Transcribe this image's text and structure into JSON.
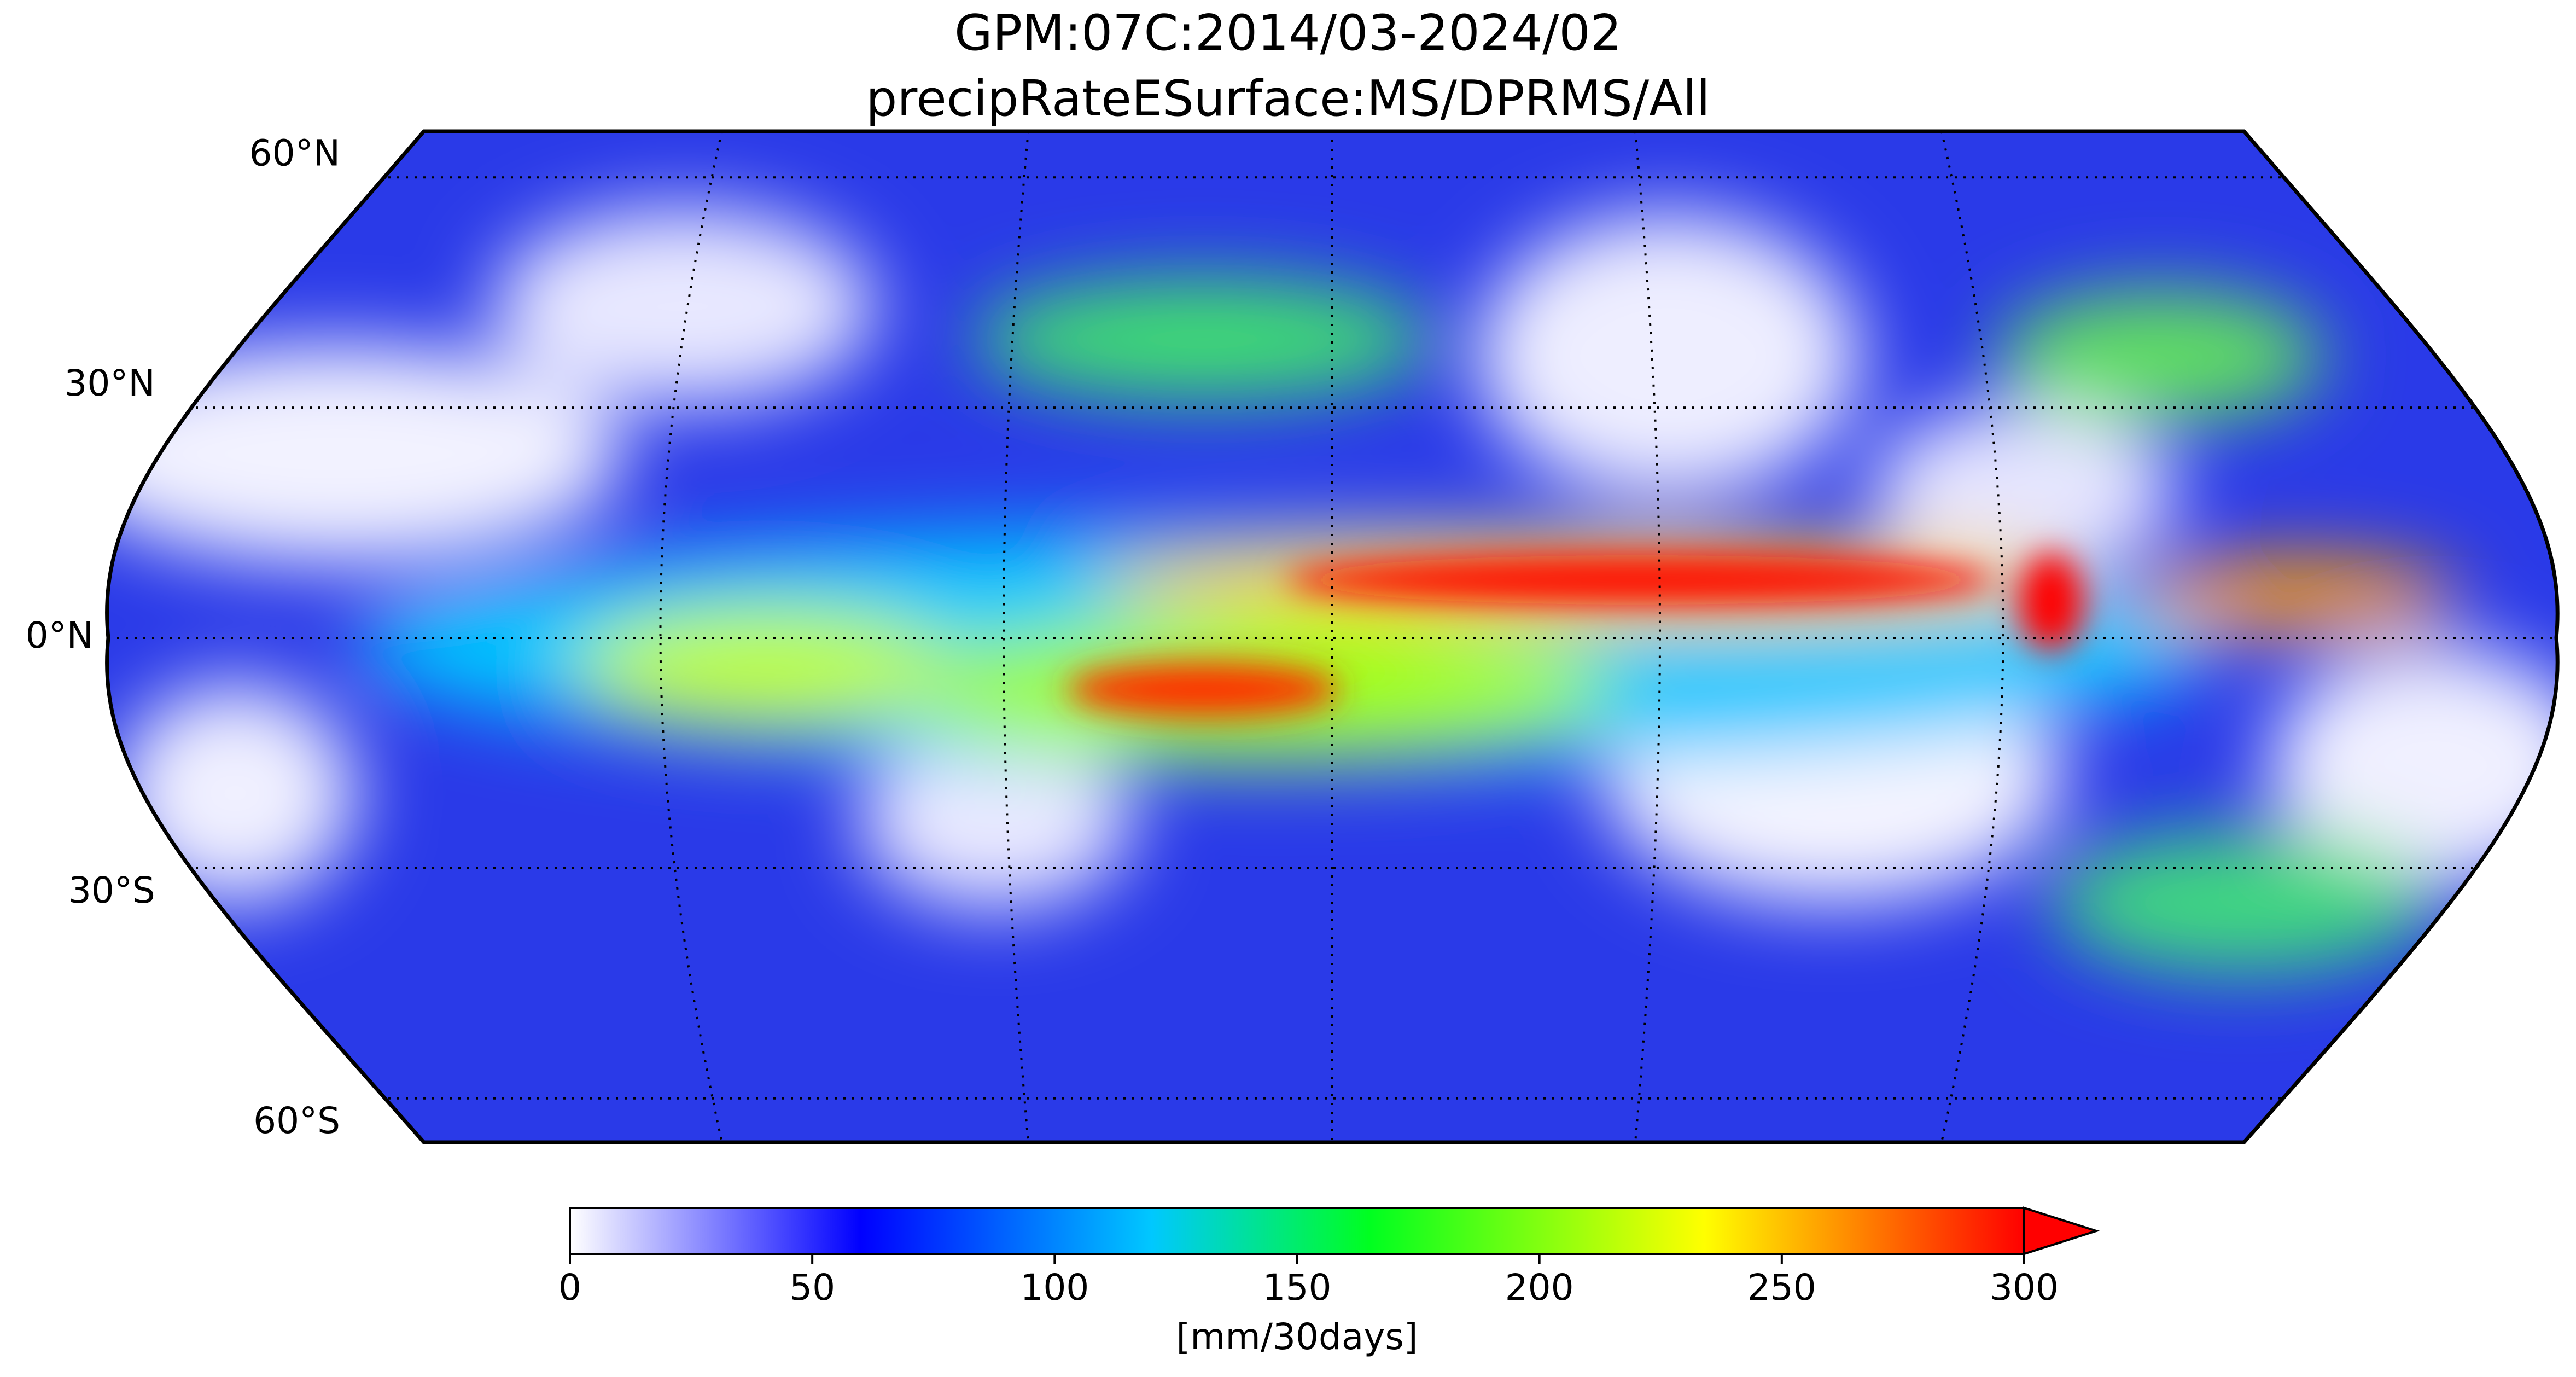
{
  "title": "GPM:07C:2014/03-2024/02",
  "subtitle": "precipRateESurface:MS/DPRMS/All",
  "map": {
    "lat_labels": [
      {
        "value": 60,
        "label": "60°N"
      },
      {
        "value": 30,
        "label": "30°N"
      },
      {
        "value": 0,
        "label": "0°N"
      },
      {
        "value": -30,
        "label": "30°S"
      },
      {
        "value": -60,
        "label": "60°S"
      }
    ]
  },
  "colorbar": {
    "lim": [
      0,
      300
    ],
    "ticks": [
      0,
      50,
      100,
      150,
      200,
      250,
      300
    ],
    "label": "[mm/30days]",
    "extend": "max"
  }
}
